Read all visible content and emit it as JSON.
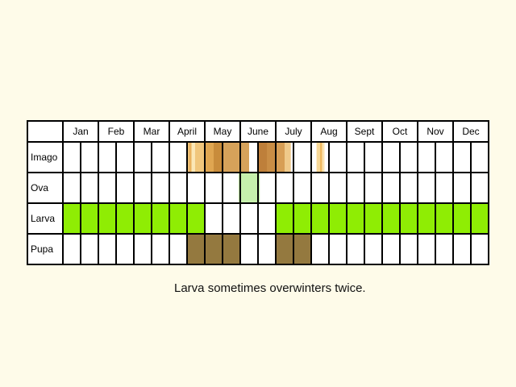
{
  "chart_data": {
    "type": "table",
    "months": [
      "Jan",
      "Feb",
      "Mar",
      "April",
      "May",
      "June",
      "July",
      "Aug",
      "Sept",
      "Oct",
      "Nov",
      "Dec"
    ],
    "stages": [
      {
        "name": "Imago",
        "periods": [
          {
            "start": 7.0,
            "end": 7.1,
            "color": "#f4c97a"
          },
          {
            "start": 7.1,
            "end": 7.25,
            "color": "#e9b25f"
          },
          {
            "start": 7.25,
            "end": 7.45,
            "color": "#fbe7b6"
          },
          {
            "start": 7.45,
            "end": 8.0,
            "color": "#f0c67c"
          },
          {
            "start": 8.0,
            "end": 8.5,
            "color": "#dfa651"
          },
          {
            "start": 8.5,
            "end": 9.0,
            "color": "#c88c3b"
          },
          {
            "start": 9.0,
            "end": 10.0,
            "color": "#d6a25a"
          },
          {
            "start": 10.0,
            "end": 10.5,
            "color": "#d6a25a"
          },
          {
            "start": 11.0,
            "end": 11.5,
            "color": "#be7f3a"
          },
          {
            "start": 11.5,
            "end": 12.0,
            "color": "#c98d45"
          },
          {
            "start": 12.0,
            "end": 12.5,
            "color": "#d79e55"
          },
          {
            "start": 12.5,
            "end": 12.85,
            "color": "#efc98a"
          },
          {
            "start": 14.3,
            "end": 14.5,
            "color": "#f7d898"
          },
          {
            "start": 14.5,
            "end": 14.62,
            "color": "#efb85f"
          },
          {
            "start": 14.62,
            "end": 14.75,
            "color": "#fbe3b0"
          }
        ]
      },
      {
        "name": "Ova",
        "periods": [
          {
            "start": 9.9,
            "end": 11.1,
            "color": "#c6f0ac"
          }
        ]
      },
      {
        "name": "Larva",
        "periods": [
          {
            "start": 0,
            "end": 8.0,
            "color": "#8fed04"
          },
          {
            "start": 12.0,
            "end": 24.0,
            "color": "#8fed04"
          }
        ]
      },
      {
        "name": "Pupa",
        "periods": [
          {
            "start": 7.0,
            "end": 10.0,
            "color": "#94793f"
          },
          {
            "start": 12.0,
            "end": 14.0,
            "color": "#94793f"
          }
        ]
      }
    ]
  },
  "caption": "Larva sometimes overwinters twice."
}
